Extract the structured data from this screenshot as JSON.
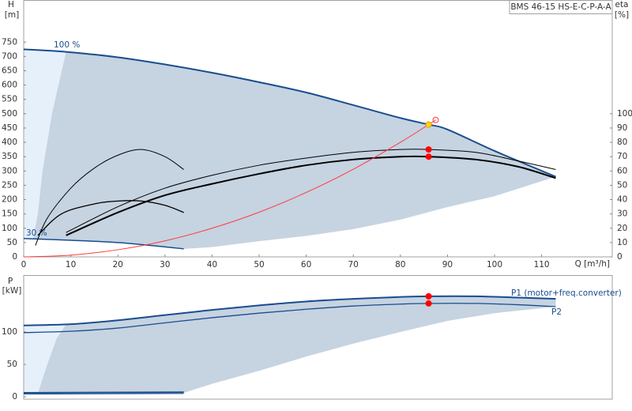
{
  "chart_data": [
    {
      "type": "line",
      "title": "BMS 46-15 HS-E-C-P-A-A",
      "y_label": "H",
      "y_unit": "[m]",
      "y2_label": "eta",
      "y2_unit": "[%]",
      "x_label": "Q [m³/h]",
      "xlim": [
        0,
        125
      ],
      "xticks": [
        0,
        10,
        20,
        30,
        40,
        50,
        60,
        70,
        80,
        90,
        100,
        110
      ],
      "ylim": [
        0,
        897
      ],
      "yticks": [
        0,
        50,
        100,
        150,
        200,
        250,
        300,
        350,
        400,
        450,
        500,
        550,
        600,
        650,
        700,
        750
      ],
      "y2lim": [
        0,
        179.4
      ],
      "y2ticks": [
        0,
        10,
        20,
        30,
        40,
        50,
        60,
        70,
        80,
        90,
        100
      ],
      "areas": [
        {
          "color": "#e6f0fb",
          "x": [
            0,
            9,
            6,
            4,
            3,
            2,
            0
          ],
          "values": [
            725,
            716,
            500,
            300,
            150,
            64,
            64
          ]
        },
        {
          "color": "#c6d3e1",
          "x": [
            9,
            20,
            30,
            40,
            50,
            60,
            70,
            80,
            86,
            90,
            100,
            113,
            100,
            90,
            80,
            70,
            60,
            50,
            40,
            34,
            20,
            10,
            2,
            3,
            4,
            6,
            9
          ],
          "values": [
            716,
            697,
            672,
            643,
            610,
            574,
            530,
            485,
            462,
            445,
            370,
            280,
            212,
            174,
            130,
            97,
            73,
            55,
            34,
            28,
            50,
            58,
            64,
            150,
            300,
            500,
            716
          ]
        }
      ],
      "series": [
        {
          "name": "100 %",
          "color": "#1a4d8f",
          "width": 2,
          "x": [
            0,
            9,
            20,
            30,
            40,
            50,
            60,
            70,
            80,
            86,
            90,
            100,
            113
          ],
          "values": [
            725,
            716,
            697,
            672,
            643,
            610,
            574,
            530,
            485,
            462,
            445,
            370,
            280
          ]
        },
        {
          "name": "30 %",
          "color": "#1a4d8f",
          "width": 1.5,
          "x": [
            0,
            10,
            20,
            30,
            34
          ],
          "values": [
            64,
            58,
            50,
            35,
            28
          ]
        },
        {
          "color": "#000000",
          "width": 2,
          "axis": "y2",
          "x": [
            9,
            20,
            30,
            40,
            50,
            60,
            70,
            80,
            86,
            96,
            105,
            113
          ],
          "values": [
            15,
            31,
            43,
            51,
            58,
            64,
            68,
            70,
            70,
            68,
            63,
            55
          ]
        },
        {
          "color": "#000000",
          "width": 1,
          "axis": "y2",
          "x": [
            9,
            20,
            30,
            40,
            50,
            60,
            70,
            80,
            86,
            96,
            105,
            113
          ],
          "values": [
            17,
            35,
            48,
            57,
            64,
            69,
            73,
            75,
            75,
            73,
            67,
            61
          ]
        },
        {
          "color": "#000000",
          "width": 1,
          "axis": "y2",
          "x": [
            2.5,
            5,
            10,
            15,
            20,
            25,
            30,
            34
          ],
          "values": [
            8,
            27,
            48,
            62,
            71,
            75,
            70,
            61
          ]
        },
        {
          "color": "#000000",
          "width": 1.3,
          "axis": "y2",
          "x": [
            3,
            8,
            15,
            20,
            25,
            30,
            34
          ],
          "values": [
            15,
            30,
            37,
            39,
            39,
            36,
            31
          ]
        },
        {
          "color": "#ff3b3b",
          "width": 1,
          "x": [
            0,
            10,
            20,
            30,
            40,
            50,
            60,
            70,
            80,
            86,
            87.5
          ],
          "values": [
            0,
            6,
            25,
            56,
            100,
            156,
            225,
            306,
            400,
            462,
            478
          ]
        }
      ],
      "points": [
        {
          "x": 86,
          "y": 462,
          "color": "#ffd700",
          "stroke": "#e0a000"
        },
        {
          "x": 87.5,
          "y": 478,
          "color": "none",
          "stroke": "#ff3b3b"
        },
        {
          "x": 86,
          "y": 75,
          "axis": "y2",
          "color": "#ff0000",
          "stroke": "#ff0000"
        },
        {
          "x": 86,
          "y": 70,
          "axis": "y2",
          "color": "#ff0000",
          "stroke": "#ff0000"
        }
      ]
    },
    {
      "type": "line",
      "y_label": "P",
      "y_unit": "[kW]",
      "xlim": [
        0,
        125
      ],
      "ylim": [
        -3.7,
        187.8
      ],
      "yticks": [
        0,
        50,
        100
      ],
      "areas": [
        {
          "color": "#e6f0fb",
          "x": [
            0,
            9,
            7,
            5,
            3,
            0
          ],
          "values": [
            110,
            112,
            90,
            50,
            5,
            5
          ]
        },
        {
          "color": "#c6d3e1",
          "x": [
            9,
            20,
            30,
            40,
            50,
            60,
            70,
            80,
            86,
            96,
            105,
            113,
            113,
            100,
            90,
            80,
            70,
            60,
            50,
            40,
            34,
            20,
            3,
            5,
            7,
            9
          ],
          "values": [
            112,
            118,
            126,
            134,
            141,
            147,
            151,
            154,
            155,
            155,
            153,
            151,
            139,
            129,
            117,
            100,
            82,
            62,
            40,
            20,
            6,
            6,
            5,
            50,
            90,
            112
          ]
        }
      ],
      "series": [
        {
          "name": "P1 (motor+freq.converter)",
          "color": "#1a4d8f",
          "width": 2,
          "x": [
            0,
            10,
            20,
            30,
            40,
            50,
            60,
            70,
            80,
            86,
            96,
            105,
            113
          ],
          "values": [
            110,
            112,
            118,
            126,
            134,
            141,
            147,
            151,
            154,
            155,
            155,
            153,
            151
          ]
        },
        {
          "name": "P2",
          "color": "#1a4d8f",
          "width": 1.3,
          "x": [
            0,
            10,
            20,
            30,
            40,
            50,
            60,
            70,
            80,
            86,
            96,
            105,
            113
          ],
          "values": [
            99,
            101,
            106,
            114,
            122,
            129,
            135,
            140,
            143,
            144,
            144,
            142,
            139
          ]
        },
        {
          "color": "#1a4d8f",
          "width": 2,
          "x": [
            0,
            34
          ],
          "values": [
            6,
            7
          ]
        },
        {
          "color": "#1a4d8f",
          "width": 1,
          "x": [
            0,
            34
          ],
          "values": [
            4,
            5
          ]
        }
      ],
      "points": [
        {
          "x": 86,
          "y": 155,
          "color": "#ff0000",
          "stroke": "#ff0000"
        },
        {
          "x": 86,
          "y": 144,
          "color": "#ff0000",
          "stroke": "#ff0000"
        }
      ]
    }
  ]
}
